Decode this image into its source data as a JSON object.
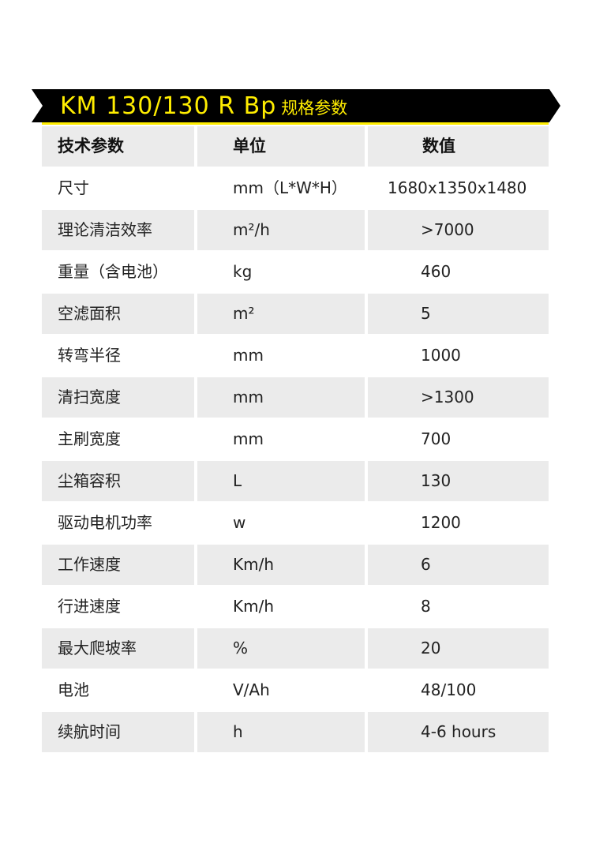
{
  "banner": {
    "model": "KM 130/130 R Bp",
    "subtitle": "规格参数",
    "colors": {
      "background": "#000000",
      "accent": "#ffed00",
      "row_shade": "#ebebeb"
    }
  },
  "table": {
    "headers": [
      "技术参数",
      "单位",
      "数值"
    ],
    "rows": [
      [
        "尺寸",
        "mm（L*W*H）",
        "1680x1350x1480"
      ],
      [
        "理论清洁效率",
        "m²/h",
        ">7000"
      ],
      [
        "重量（含电池）",
        "kg",
        "460"
      ],
      [
        "空滤面积",
        "m²",
        "5"
      ],
      [
        "转弯半径",
        "mm",
        "1000"
      ],
      [
        "清扫宽度",
        "mm",
        ">1300"
      ],
      [
        "主刷宽度",
        "mm",
        "700"
      ],
      [
        "尘箱容积",
        "L",
        "130"
      ],
      [
        "驱动电机功率",
        "w",
        "1200"
      ],
      [
        "工作速度",
        "Km/h",
        "6"
      ],
      [
        "行进速度",
        "Km/h",
        "8"
      ],
      [
        "最大爬坡率",
        "%",
        "20"
      ],
      [
        "电池",
        "V/Ah",
        "48/100"
      ],
      [
        "续航时间",
        "h",
        "4-6 hours"
      ]
    ]
  }
}
